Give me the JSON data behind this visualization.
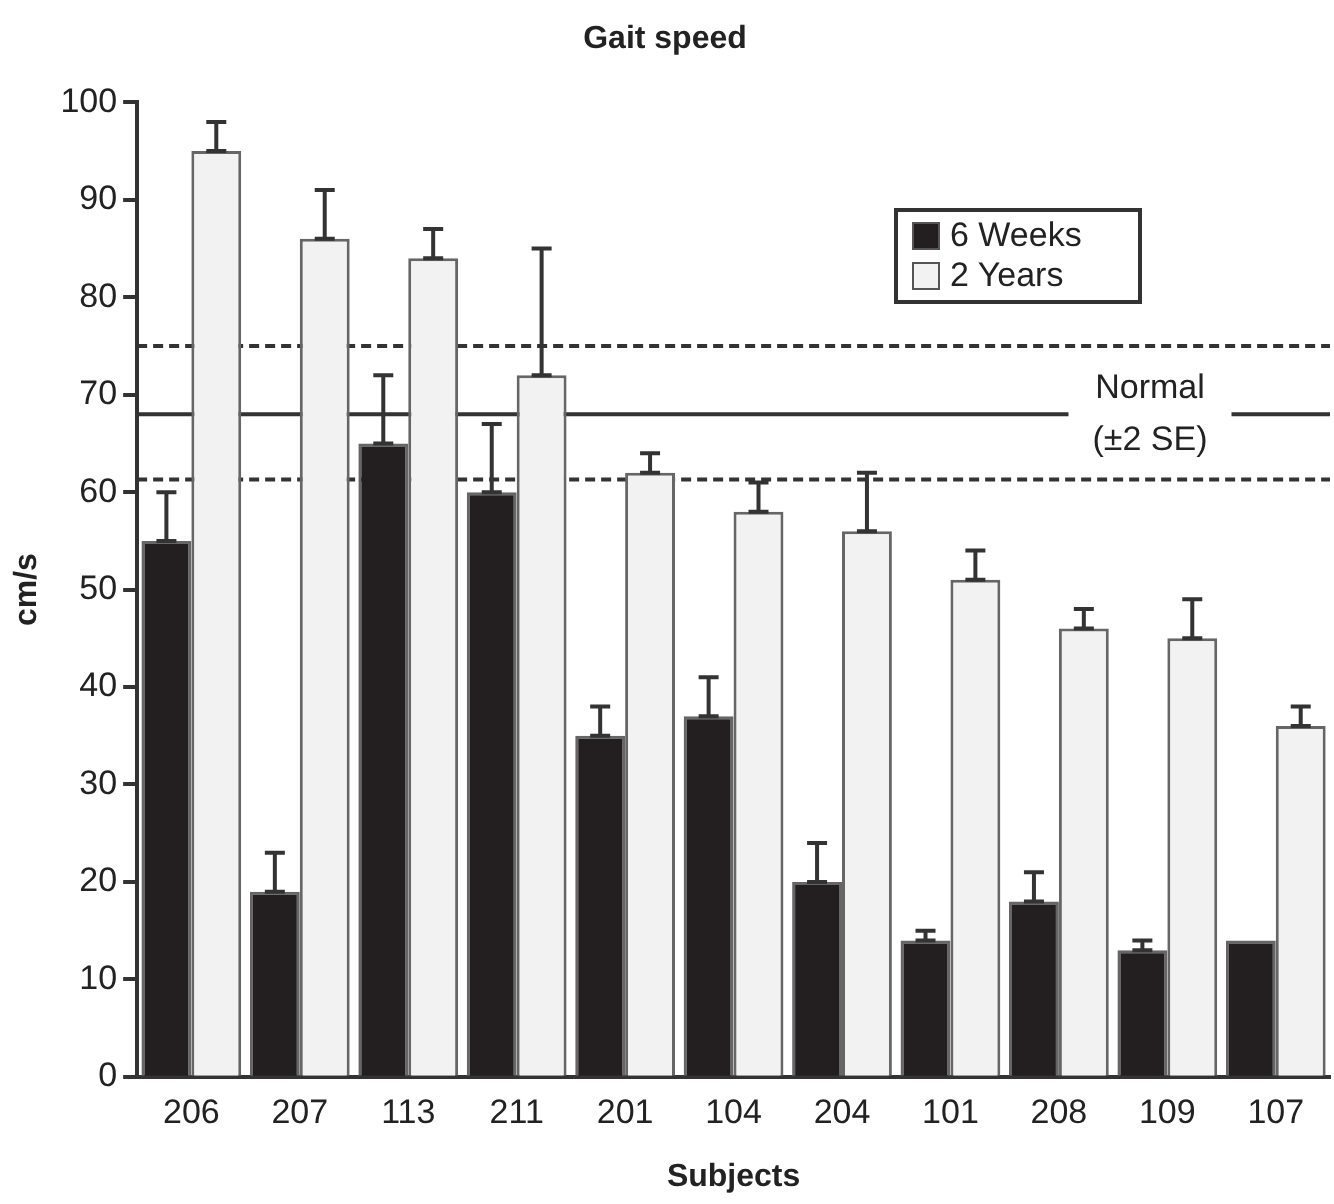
{
  "chart_data": {
    "type": "bar",
    "title": "Gait speed",
    "xlabel": "Subjects",
    "ylabel": "cm/s",
    "categories": [
      "206",
      "207",
      "113",
      "211",
      "201",
      "104",
      "204",
      "101",
      "208",
      "109",
      "107"
    ],
    "series": [
      {
        "name": "6 Weeks",
        "color": "#231f20",
        "values": [
          55,
          19,
          65,
          60,
          35,
          37,
          20,
          14,
          18,
          13,
          14
        ],
        "errors": [
          [
            55,
            60
          ],
          [
            19,
            23
          ],
          [
            65,
            72
          ],
          [
            60,
            67
          ],
          [
            35,
            38
          ],
          [
            37,
            41
          ],
          [
            20,
            24
          ],
          [
            14,
            15
          ],
          [
            18,
            21
          ],
          [
            13,
            14
          ],
          null
        ]
      },
      {
        "name": "2 Years",
        "color": "#f2f2f2",
        "values": [
          95,
          86,
          84,
          72,
          62,
          58,
          56,
          51,
          46,
          45,
          36
        ],
        "errors": [
          [
            95,
            98
          ],
          [
            86,
            91
          ],
          [
            84,
            87
          ],
          [
            72,
            85
          ],
          [
            62,
            64
          ],
          [
            58,
            61
          ],
          [
            56,
            62
          ],
          [
            51,
            54
          ],
          [
            46,
            48
          ],
          [
            45,
            49
          ],
          [
            36,
            38
          ]
        ]
      }
    ],
    "ylim": [
      0,
      100
    ],
    "yticks": [
      0,
      10,
      20,
      30,
      40,
      50,
      60,
      70,
      80,
      90,
      100
    ],
    "grid": false,
    "legend": "top right",
    "ref_lines": [
      {
        "axis": "y",
        "value": 68,
        "label": "Normal\n(±2 SE)",
        "line_style": "solid",
        "color": "#333333"
      },
      {
        "axis": "y",
        "value": 75,
        "line_style": "dashed",
        "color": "#333333"
      },
      {
        "axis": "y",
        "value": 61.3,
        "line_style": "dashed",
        "color": "#333333"
      }
    ]
  }
}
